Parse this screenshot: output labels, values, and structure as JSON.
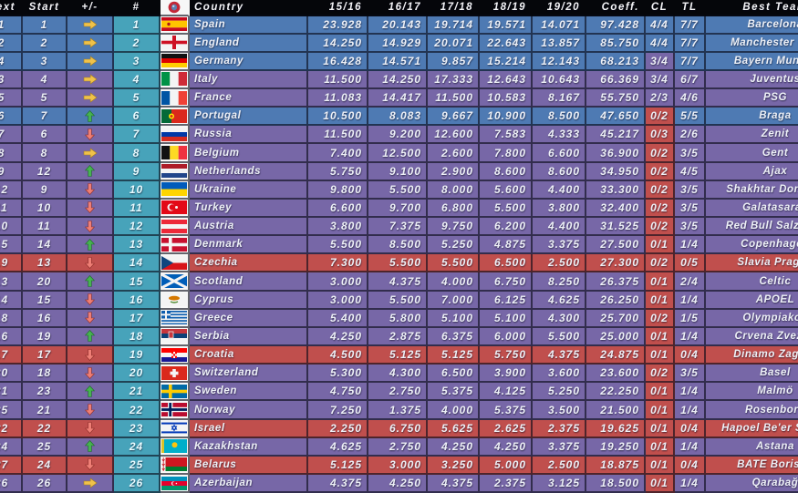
{
  "table": {
    "headers": {
      "next": "Next",
      "start": "Start",
      "move": "+/-",
      "rank": "#",
      "flag_icon": "uefa-logo",
      "country": "Country",
      "seasons": [
        "15/16",
        "16/17",
        "17/18",
        "18/19",
        "19/20"
      ],
      "coeff": "Coeff.",
      "cl": "CL",
      "tl": "TL",
      "team": "Best Team"
    },
    "rows": [
      {
        "next": "1",
        "start": "1",
        "move": "same",
        "rank": "1",
        "flag": "esp",
        "country": "Spain",
        "seasons": [
          "23.928",
          "20.143",
          "19.714",
          "19.571",
          "14.071"
        ],
        "coeff": "97.428",
        "cl": "4/4",
        "tl": "7/7",
        "team": "Barcelona"
      },
      {
        "next": "2",
        "start": "2",
        "move": "same",
        "rank": "2",
        "flag": "eng",
        "country": "England",
        "seasons": [
          "14.250",
          "14.929",
          "20.071",
          "22.643",
          "13.857"
        ],
        "coeff": "85.750",
        "cl": "4/4",
        "tl": "7/7",
        "team": "Manchester City"
      },
      {
        "next": "4",
        "start": "3",
        "move": "same",
        "rank": "3",
        "flag": "ger",
        "country": "Germany",
        "seasons": [
          "16.428",
          "14.571",
          "9.857",
          "15.214",
          "12.143"
        ],
        "coeff": "68.213",
        "cl": "3/4",
        "tl": "7/7",
        "team": "Bayern Munich"
      },
      {
        "next": "3",
        "start": "4",
        "move": "same",
        "rank": "4",
        "flag": "ita",
        "country": "Italy",
        "seasons": [
          "11.500",
          "14.250",
          "17.333",
          "12.643",
          "10.643"
        ],
        "coeff": "66.369",
        "cl": "3/4",
        "tl": "6/7",
        "team": "Juventus"
      },
      {
        "next": "5",
        "start": "5",
        "move": "same",
        "rank": "5",
        "flag": "fra",
        "country": "France",
        "seasons": [
          "11.083",
          "14.417",
          "11.500",
          "10.583",
          "8.167"
        ],
        "coeff": "55.750",
        "cl": "2/3",
        "tl": "4/6",
        "team": "PSG"
      },
      {
        "next": "6",
        "start": "7",
        "move": "up",
        "rank": "6",
        "flag": "por",
        "country": "Portugal",
        "seasons": [
          "10.500",
          "8.083",
          "9.667",
          "10.900",
          "8.500"
        ],
        "coeff": "47.650",
        "cl": "0/2",
        "tl": "5/5",
        "team": "Braga"
      },
      {
        "next": "7",
        "start": "6",
        "move": "down",
        "rank": "7",
        "flag": "rus",
        "country": "Russia",
        "seasons": [
          "11.500",
          "9.200",
          "12.600",
          "7.583",
          "4.333"
        ],
        "coeff": "45.217",
        "cl": "0/3",
        "tl": "2/6",
        "team": "Zenit"
      },
      {
        "next": "8",
        "start": "8",
        "move": "same",
        "rank": "8",
        "flag": "bel",
        "country": "Belgium",
        "seasons": [
          "7.400",
          "12.500",
          "2.600",
          "7.800",
          "6.600"
        ],
        "coeff": "36.900",
        "cl": "0/2",
        "tl": "3/5",
        "team": "Gent"
      },
      {
        "next": "9",
        "start": "12",
        "move": "up",
        "rank": "9",
        "flag": "ned",
        "country": "Netherlands",
        "seasons": [
          "5.750",
          "9.100",
          "2.900",
          "8.600",
          "8.600"
        ],
        "coeff": "34.950",
        "cl": "0/2",
        "tl": "4/5",
        "team": "Ajax"
      },
      {
        "next": "12",
        "start": "9",
        "move": "down",
        "rank": "10",
        "flag": "ukr",
        "country": "Ukraine",
        "seasons": [
          "9.800",
          "5.500",
          "8.000",
          "5.600",
          "4.400"
        ],
        "coeff": "33.300",
        "cl": "0/2",
        "tl": "3/5",
        "team": "Shakhtar Donetsk"
      },
      {
        "next": "11",
        "start": "10",
        "move": "down",
        "rank": "11",
        "flag": "tur",
        "country": "Turkey",
        "seasons": [
          "6.600",
          "9.700",
          "6.800",
          "5.500",
          "3.800"
        ],
        "coeff": "32.400",
        "cl": "0/2",
        "tl": "3/5",
        "team": "Galatasaray"
      },
      {
        "next": "10",
        "start": "11",
        "move": "down",
        "rank": "12",
        "flag": "aut",
        "country": "Austria",
        "seasons": [
          "3.800",
          "7.375",
          "9.750",
          "6.200",
          "4.400"
        ],
        "coeff": "31.525",
        "cl": "0/2",
        "tl": "3/5",
        "team": "Red Bull Salzburg"
      },
      {
        "next": "15",
        "start": "14",
        "move": "up",
        "rank": "13",
        "flag": "den",
        "country": "Denmark",
        "seasons": [
          "5.500",
          "8.500",
          "5.250",
          "4.875",
          "3.375"
        ],
        "coeff": "27.500",
        "cl": "0/1",
        "tl": "1/4",
        "team": "Copenhagen"
      },
      {
        "next": "19",
        "start": "13",
        "move": "down",
        "rank": "14",
        "flag": "cze",
        "country": "Czechia",
        "seasons": [
          "7.300",
          "5.500",
          "5.500",
          "6.500",
          "2.500"
        ],
        "coeff": "27.300",
        "cl": "0/2",
        "tl": "0/5",
        "team": "Slavia Prague"
      },
      {
        "next": "13",
        "start": "20",
        "move": "up",
        "rank": "15",
        "flag": "sco",
        "country": "Scotland",
        "seasons": [
          "3.000",
          "4.375",
          "4.000",
          "6.750",
          "8.250"
        ],
        "coeff": "26.375",
        "cl": "0/1",
        "tl": "2/4",
        "team": "Celtic"
      },
      {
        "next": "14",
        "start": "15",
        "move": "down",
        "rank": "16",
        "flag": "cyp",
        "country": "Cyprus",
        "seasons": [
          "3.000",
          "5.500",
          "7.000",
          "6.125",
          "4.625"
        ],
        "coeff": "26.250",
        "cl": "0/1",
        "tl": "1/4",
        "team": "APOEL"
      },
      {
        "next": "18",
        "start": "16",
        "move": "down",
        "rank": "17",
        "flag": "gre",
        "country": "Greece",
        "seasons": [
          "5.400",
          "5.800",
          "5.100",
          "5.100",
          "4.300"
        ],
        "coeff": "25.700",
        "cl": "0/2",
        "tl": "1/5",
        "team": "Olympiakos"
      },
      {
        "next": "16",
        "start": "19",
        "move": "up",
        "rank": "18",
        "flag": "srb",
        "country": "Serbia",
        "seasons": [
          "4.250",
          "2.875",
          "6.375",
          "6.000",
          "5.500"
        ],
        "coeff": "25.000",
        "cl": "0/1",
        "tl": "1/4",
        "team": "Crvena Zvezda"
      },
      {
        "next": "17",
        "start": "17",
        "move": "down",
        "rank": "19",
        "flag": "cro",
        "country": "Croatia",
        "seasons": [
          "4.500",
          "5.125",
          "5.125",
          "5.750",
          "4.375"
        ],
        "coeff": "24.875",
        "cl": "0/1",
        "tl": "0/4",
        "team": "Dinamo Zagreb"
      },
      {
        "next": "20",
        "start": "18",
        "move": "down",
        "rank": "20",
        "flag": "sui",
        "country": "Switzerland",
        "seasons": [
          "5.300",
          "4.300",
          "6.500",
          "3.900",
          "3.600"
        ],
        "coeff": "23.600",
        "cl": "0/2",
        "tl": "3/5",
        "team": "Basel"
      },
      {
        "next": "21",
        "start": "23",
        "move": "up",
        "rank": "21",
        "flag": "swe",
        "country": "Sweden",
        "seasons": [
          "4.750",
          "2.750",
          "5.375",
          "4.125",
          "5.250"
        ],
        "coeff": "22.250",
        "cl": "0/1",
        "tl": "1/4",
        "team": "Malmö"
      },
      {
        "next": "25",
        "start": "21",
        "move": "down",
        "rank": "22",
        "flag": "nor",
        "country": "Norway",
        "seasons": [
          "7.250",
          "1.375",
          "4.000",
          "5.375",
          "3.500"
        ],
        "coeff": "21.500",
        "cl": "0/1",
        "tl": "1/4",
        "team": "Rosenborg"
      },
      {
        "next": "22",
        "start": "22",
        "move": "down",
        "rank": "23",
        "flag": "isr",
        "country": "Israel",
        "seasons": [
          "2.250",
          "6.750",
          "5.625",
          "2.625",
          "2.375"
        ],
        "coeff": "19.625",
        "cl": "0/1",
        "tl": "0/4",
        "team": "Hapoel Be'er Sheva"
      },
      {
        "next": "24",
        "start": "25",
        "move": "up",
        "rank": "24",
        "flag": "kaz",
        "country": "Kazakhstan",
        "seasons": [
          "4.625",
          "2.750",
          "4.250",
          "4.250",
          "3.375"
        ],
        "coeff": "19.250",
        "cl": "0/1",
        "tl": "1/4",
        "team": "Astana"
      },
      {
        "next": "27",
        "start": "24",
        "move": "down",
        "rank": "25",
        "flag": "blr",
        "country": "Belarus",
        "seasons": [
          "5.125",
          "3.000",
          "3.250",
          "5.000",
          "2.500"
        ],
        "coeff": "18.875",
        "cl": "0/1",
        "tl": "0/4",
        "team": "BATE Borisov"
      },
      {
        "next": "26",
        "start": "26",
        "move": "same",
        "rank": "26",
        "flag": "aze",
        "country": "Azerbaijan",
        "seasons": [
          "4.375",
          "4.250",
          "4.375",
          "2.375",
          "3.125"
        ],
        "coeff": "18.500",
        "cl": "0/1",
        "tl": "1/4",
        "team": "Qarabağ"
      }
    ]
  },
  "colors": {
    "row_blue": "#4e7ab3",
    "row_purple": "#7767a7",
    "row_red": "#c04f4d",
    "rank_teal": "#47a3ba",
    "header_black": "#05060a",
    "arrow_same": "#f0c24a",
    "arrow_up": "#46b350",
    "arrow_down": "#ee7e75"
  }
}
